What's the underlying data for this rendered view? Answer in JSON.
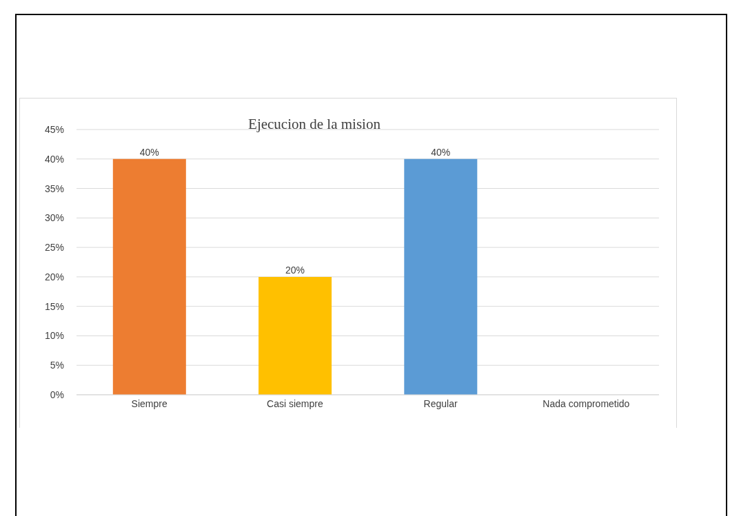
{
  "chart_data": {
    "type": "bar",
    "title": "Ejecucion de la mision",
    "categories": [
      "Siempre",
      "Casi siempre",
      "Regular",
      "Nada comprometido"
    ],
    "values": [
      40,
      20,
      40,
      0
    ],
    "value_labels": [
      "40%",
      "20%",
      "40%",
      null
    ],
    "colors": [
      "#ed7d31",
      "#ffc000",
      "#5b9bd5",
      "#70ad47"
    ],
    "ylim": [
      0,
      45
    ],
    "yticks": [
      {
        "value": 0,
        "label": "0%"
      },
      {
        "value": 5,
        "label": "5%"
      },
      {
        "value": 10,
        "label": "10%"
      },
      {
        "value": 15,
        "label": "15%"
      },
      {
        "value": 20,
        "label": "20%"
      },
      {
        "value": 25,
        "label": "25%"
      },
      {
        "value": 30,
        "label": "30%"
      },
      {
        "value": 35,
        "label": "35%"
      },
      {
        "value": 40,
        "label": "40%"
      },
      {
        "value": 45,
        "label": "45%"
      }
    ],
    "grid": "y",
    "legend": false
  }
}
